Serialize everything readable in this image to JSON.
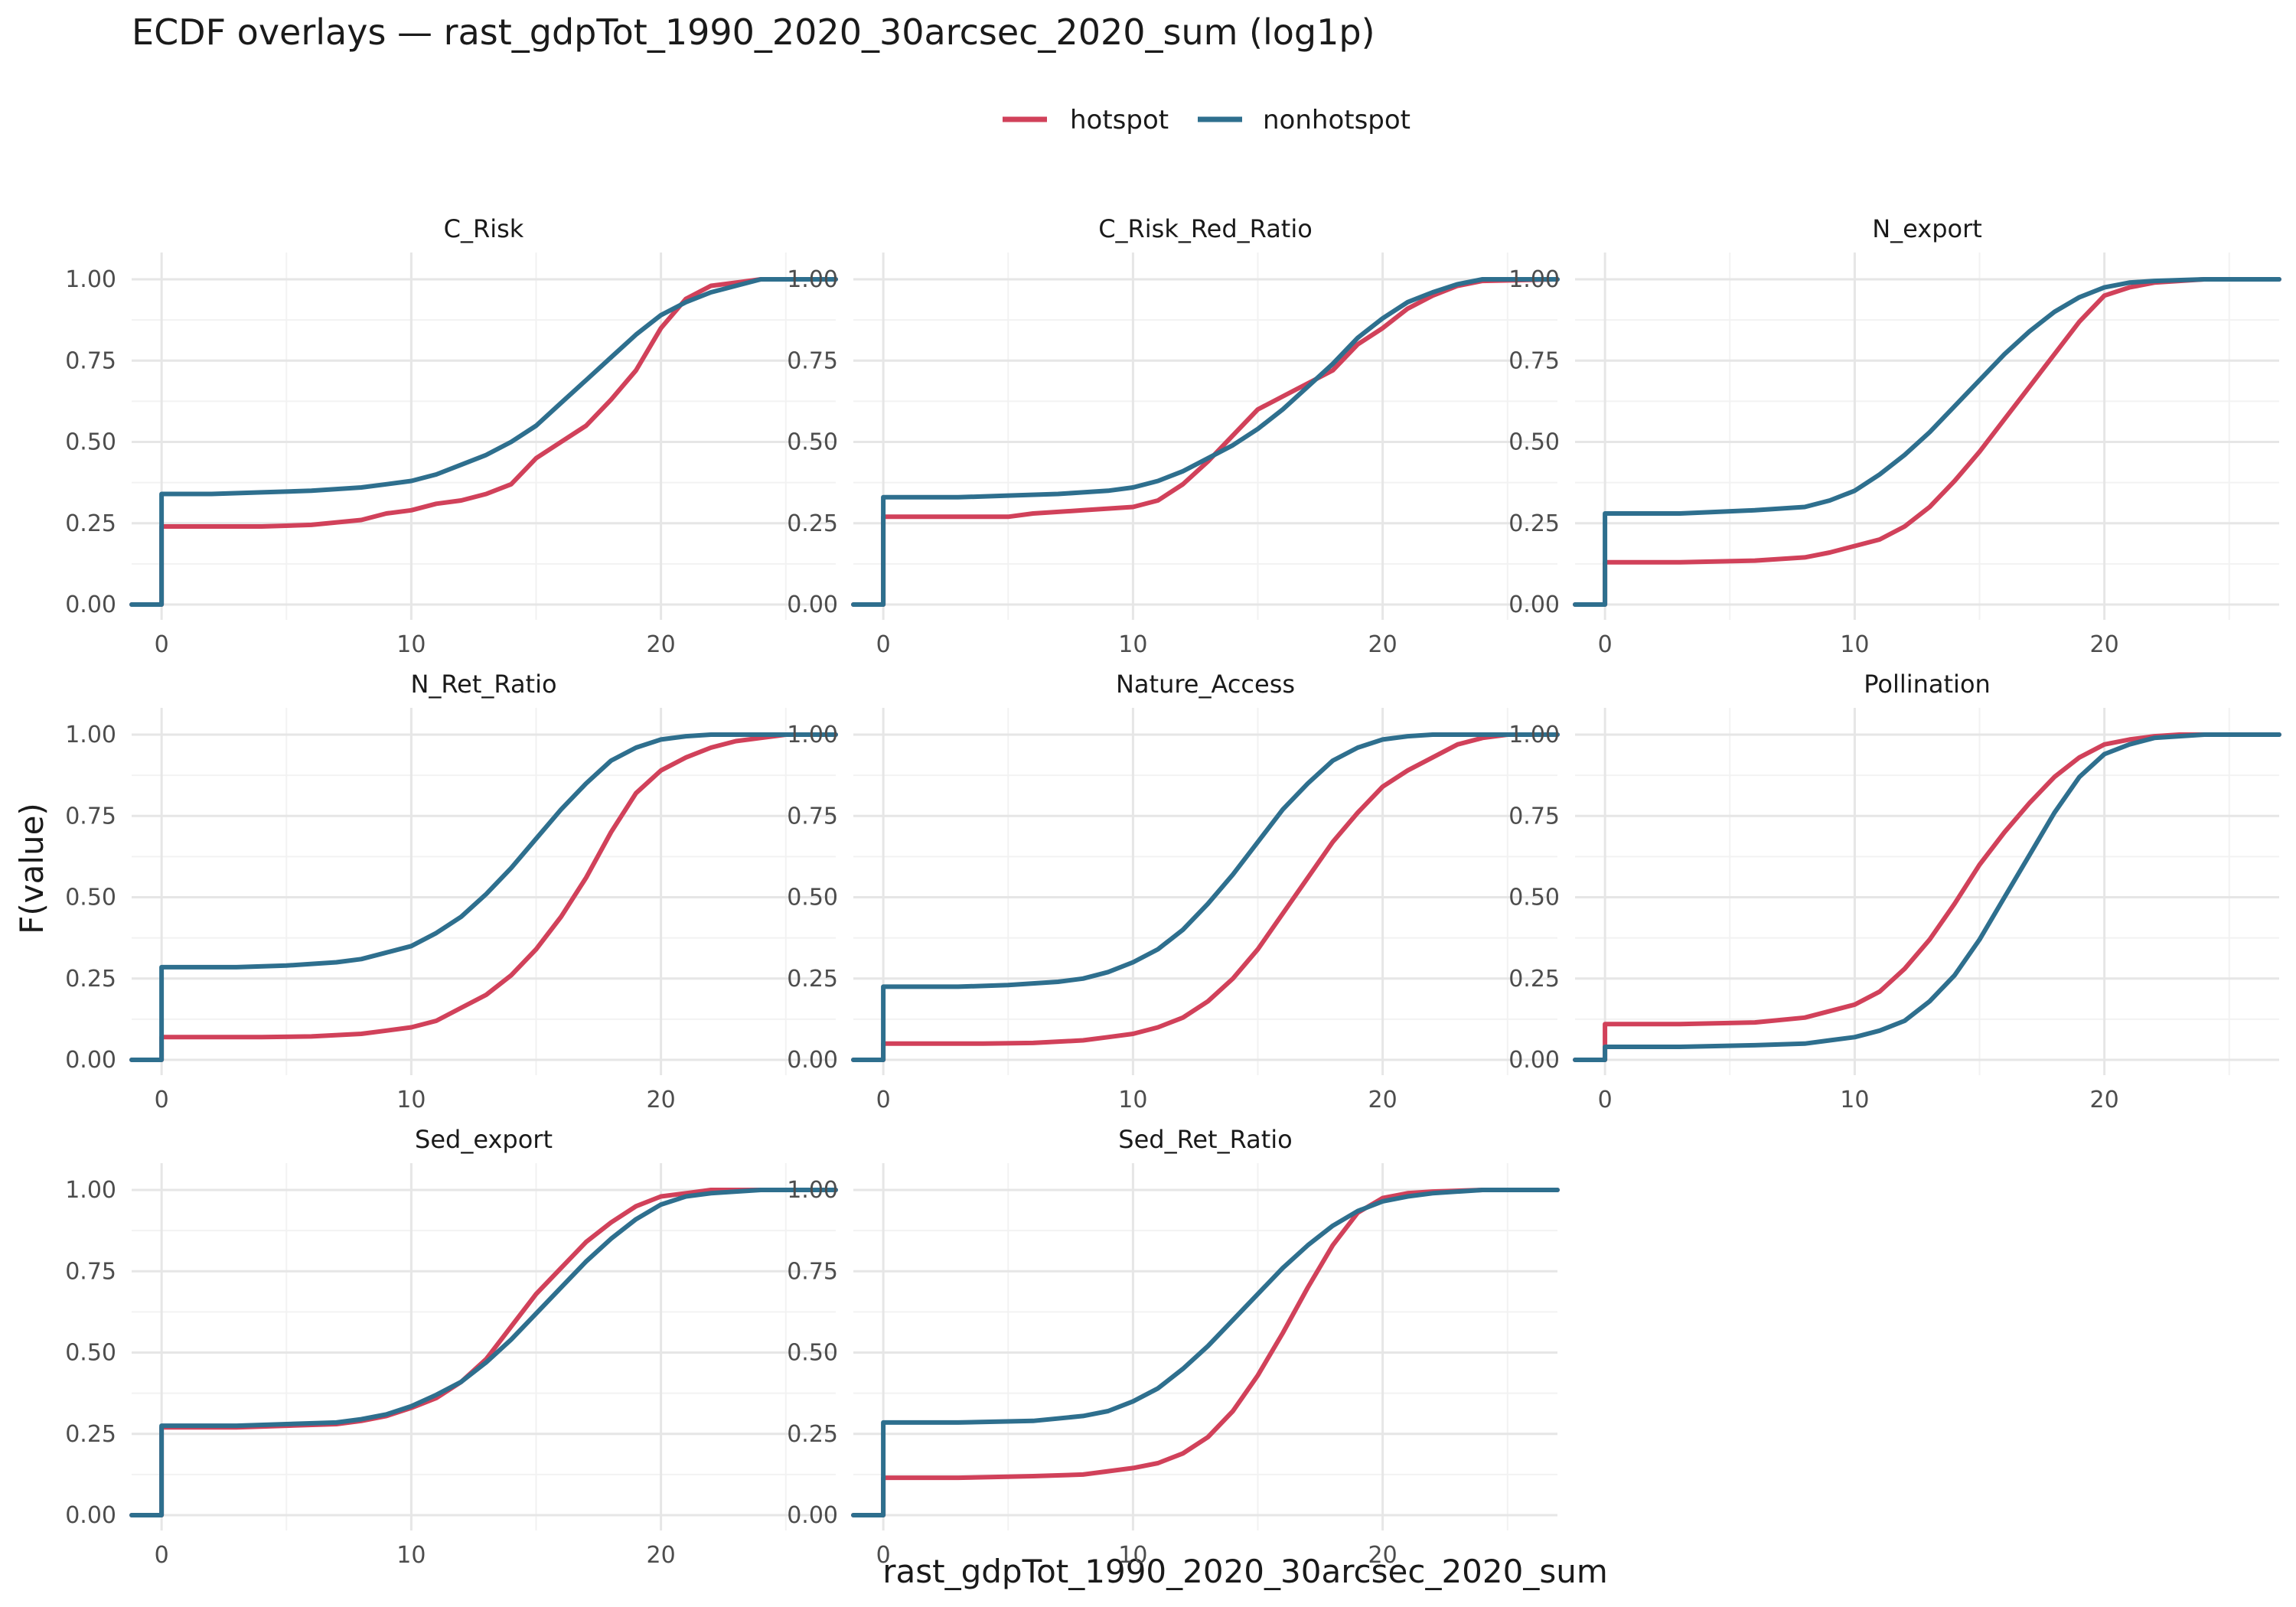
{
  "chart_data": {
    "type": "line",
    "title": "ECDF overlays — rast_gdpTot_1990_2020_30arcsec_2020_sum (log1p)",
    "xlabel": "rast_gdpTot_1990_2020_30arcsec_2020_sum",
    "ylabel": "F(value)",
    "xlim": [
      -1.2,
      27
    ],
    "ylim": [
      0,
      1
    ],
    "x_ticks": [
      0,
      10,
      20
    ],
    "y_ticks": [
      0,
      0.25,
      0.5,
      0.75,
      1.0
    ],
    "y_tick_labels": [
      "0.00",
      "0.25",
      "0.50",
      "0.75",
      "1.00"
    ],
    "grid": true,
    "legend_position": "top",
    "colors": {
      "hotspot": "#d1415a",
      "nonhotspot": "#2e6f8e"
    },
    "legend": [
      "hotspot",
      "nonhotspot"
    ],
    "panels": [
      {
        "name": "C_Risk",
        "series": [
          {
            "name": "hotspot",
            "x": [
              -1.2,
              0,
              0,
              2,
              4,
              6,
              8,
              9,
              10,
              11,
              12,
              13,
              14,
              15,
              16,
              17,
              18,
              19,
              20,
              21,
              22,
              23,
              24,
              27
            ],
            "y": [
              0,
              0,
              0.24,
              0.24,
              0.24,
              0.245,
              0.26,
              0.28,
              0.29,
              0.31,
              0.32,
              0.34,
              0.37,
              0.45,
              0.5,
              0.55,
              0.63,
              0.72,
              0.85,
              0.94,
              0.98,
              0.99,
              1.0,
              1.0
            ]
          },
          {
            "name": "nonhotspot",
            "x": [
              -1.2,
              0,
              0,
              2,
              4,
              6,
              8,
              9,
              10,
              11,
              12,
              13,
              14,
              15,
              16,
              17,
              18,
              19,
              20,
              21,
              22,
              23,
              24,
              27
            ],
            "y": [
              0,
              0,
              0.34,
              0.34,
              0.345,
              0.35,
              0.36,
              0.37,
              0.38,
              0.4,
              0.43,
              0.46,
              0.5,
              0.55,
              0.62,
              0.69,
              0.76,
              0.83,
              0.89,
              0.93,
              0.96,
              0.98,
              1.0,
              1.0
            ]
          }
        ]
      },
      {
        "name": "C_Risk_Red_Ratio",
        "series": [
          {
            "name": "hotspot",
            "x": [
              -1.2,
              0,
              0,
              3,
              5,
              6,
              8,
              10,
              11,
              12,
              13,
              14,
              15,
              16,
              17,
              18,
              19,
              20,
              21,
              22,
              23,
              24,
              27
            ],
            "y": [
              0,
              0,
              0.27,
              0.27,
              0.27,
              0.28,
              0.29,
              0.3,
              0.32,
              0.37,
              0.44,
              0.52,
              0.6,
              0.64,
              0.68,
              0.72,
              0.8,
              0.85,
              0.91,
              0.95,
              0.98,
              0.995,
              1.0
            ]
          },
          {
            "name": "nonhotspot",
            "x": [
              -1.2,
              0,
              0,
              3,
              5,
              7,
              8,
              9,
              10,
              11,
              12,
              13,
              14,
              15,
              16,
              17,
              18,
              19,
              20,
              21,
              22,
              23,
              24,
              27
            ],
            "y": [
              0,
              0,
              0.33,
              0.33,
              0.335,
              0.34,
              0.345,
              0.35,
              0.36,
              0.38,
              0.41,
              0.45,
              0.49,
              0.54,
              0.6,
              0.67,
              0.74,
              0.82,
              0.88,
              0.93,
              0.96,
              0.985,
              1.0,
              1.0
            ]
          }
        ]
      },
      {
        "name": "N_export",
        "series": [
          {
            "name": "hotspot",
            "x": [
              -1.2,
              0,
              0,
              3,
              6,
              8,
              9,
              10,
              11,
              12,
              13,
              14,
              15,
              16,
              17,
              18,
              19,
              20,
              21,
              22,
              24,
              27
            ],
            "y": [
              0,
              0,
              0.13,
              0.13,
              0.135,
              0.145,
              0.16,
              0.18,
              0.2,
              0.24,
              0.3,
              0.38,
              0.47,
              0.57,
              0.67,
              0.77,
              0.87,
              0.95,
              0.975,
              0.99,
              1.0,
              1.0
            ]
          },
          {
            "name": "nonhotspot",
            "x": [
              -1.2,
              0,
              0,
              3,
              6,
              8,
              9,
              10,
              11,
              12,
              13,
              14,
              15,
              16,
              17,
              18,
              19,
              20,
              21,
              22,
              24,
              27
            ],
            "y": [
              0,
              0,
              0.28,
              0.28,
              0.29,
              0.3,
              0.32,
              0.35,
              0.4,
              0.46,
              0.53,
              0.61,
              0.69,
              0.77,
              0.84,
              0.9,
              0.945,
              0.975,
              0.99,
              0.995,
              1.0,
              1.0
            ]
          }
        ]
      },
      {
        "name": "N_Ret_Ratio",
        "series": [
          {
            "name": "hotspot",
            "x": [
              -1.2,
              0,
              0,
              4,
              6,
              8,
              9,
              10,
              11,
              12,
              13,
              14,
              15,
              16,
              17,
              18,
              19,
              20,
              21,
              22,
              23,
              24,
              25,
              27
            ],
            "y": [
              0,
              0,
              0.07,
              0.07,
              0.072,
              0.08,
              0.09,
              0.1,
              0.12,
              0.16,
              0.2,
              0.26,
              0.34,
              0.44,
              0.56,
              0.7,
              0.82,
              0.89,
              0.93,
              0.96,
              0.98,
              0.99,
              1.0,
              1.0
            ]
          },
          {
            "name": "nonhotspot",
            "x": [
              -1.2,
              0,
              0,
              3,
              5,
              7,
              8,
              9,
              10,
              11,
              12,
              13,
              14,
              15,
              16,
              17,
              18,
              19,
              20,
              21,
              22,
              24,
              27
            ],
            "y": [
              0,
              0,
              0.285,
              0.285,
              0.29,
              0.3,
              0.31,
              0.33,
              0.35,
              0.39,
              0.44,
              0.51,
              0.59,
              0.68,
              0.77,
              0.85,
              0.92,
              0.96,
              0.985,
              0.995,
              1.0,
              1.0,
              1.0
            ]
          }
        ]
      },
      {
        "name": "Nature_Access",
        "series": [
          {
            "name": "hotspot",
            "x": [
              -1.2,
              0,
              0,
              4,
              6,
              8,
              9,
              10,
              11,
              12,
              13,
              14,
              15,
              16,
              17,
              18,
              19,
              20,
              21,
              22,
              23,
              24,
              25,
              27
            ],
            "y": [
              0,
              0,
              0.05,
              0.05,
              0.052,
              0.06,
              0.07,
              0.08,
              0.1,
              0.13,
              0.18,
              0.25,
              0.34,
              0.45,
              0.56,
              0.67,
              0.76,
              0.84,
              0.89,
              0.93,
              0.97,
              0.99,
              1.0,
              1.0
            ]
          },
          {
            "name": "nonhotspot",
            "x": [
              -1.2,
              0,
              0,
              3,
              5,
              7,
              8,
              9,
              10,
              11,
              12,
              13,
              14,
              15,
              16,
              17,
              18,
              19,
              20,
              21,
              22,
              24,
              27
            ],
            "y": [
              0,
              0,
              0.225,
              0.225,
              0.23,
              0.24,
              0.25,
              0.27,
              0.3,
              0.34,
              0.4,
              0.48,
              0.57,
              0.67,
              0.77,
              0.85,
              0.92,
              0.96,
              0.985,
              0.995,
              1.0,
              1.0,
              1.0
            ]
          }
        ]
      },
      {
        "name": "Pollination",
        "series": [
          {
            "name": "hotspot",
            "x": [
              -1.2,
              0,
              0,
              3,
              6,
              8,
              9,
              10,
              11,
              12,
              13,
              14,
              15,
              16,
              17,
              18,
              19,
              20,
              21,
              22,
              23,
              24,
              27
            ],
            "y": [
              0,
              0,
              0.11,
              0.11,
              0.115,
              0.13,
              0.15,
              0.17,
              0.21,
              0.28,
              0.37,
              0.48,
              0.6,
              0.7,
              0.79,
              0.87,
              0.93,
              0.97,
              0.985,
              0.995,
              1.0,
              1.0,
              1.0
            ]
          },
          {
            "name": "nonhotspot",
            "x": [
              -1.2,
              0,
              0,
              3,
              6,
              8,
              9,
              10,
              11,
              12,
              13,
              14,
              15,
              16,
              17,
              18,
              19,
              20,
              21,
              22,
              23,
              24,
              27
            ],
            "y": [
              0,
              0,
              0.04,
              0.04,
              0.045,
              0.05,
              0.06,
              0.07,
              0.09,
              0.12,
              0.18,
              0.26,
              0.37,
              0.5,
              0.63,
              0.76,
              0.87,
              0.94,
              0.97,
              0.99,
              0.995,
              1.0,
              1.0
            ]
          }
        ]
      },
      {
        "name": "Sed_export",
        "series": [
          {
            "name": "hotspot",
            "x": [
              -1.2,
              0,
              0,
              3,
              5,
              7,
              8,
              9,
              10,
              11,
              12,
              13,
              14,
              15,
              16,
              17,
              18,
              19,
              20,
              21,
              22,
              23,
              27
            ],
            "y": [
              0,
              0,
              0.27,
              0.27,
              0.275,
              0.28,
              0.29,
              0.305,
              0.33,
              0.36,
              0.41,
              0.48,
              0.58,
              0.68,
              0.76,
              0.84,
              0.9,
              0.95,
              0.98,
              0.99,
              1.0,
              1.0,
              1.0
            ]
          },
          {
            "name": "nonhotspot",
            "x": [
              -1.2,
              0,
              0,
              3,
              5,
              7,
              8,
              9,
              10,
              11,
              12,
              13,
              14,
              15,
              16,
              17,
              18,
              19,
              20,
              21,
              22,
              24,
              27
            ],
            "y": [
              0,
              0,
              0.275,
              0.275,
              0.28,
              0.285,
              0.295,
              0.31,
              0.335,
              0.37,
              0.41,
              0.47,
              0.54,
              0.62,
              0.7,
              0.78,
              0.85,
              0.91,
              0.955,
              0.98,
              0.99,
              1.0,
              1.0
            ]
          }
        ]
      },
      {
        "name": "Sed_Ret_Ratio",
        "series": [
          {
            "name": "hotspot",
            "x": [
              -1.2,
              0,
              0,
              3,
              6,
              8,
              9,
              10,
              11,
              12,
              13,
              14,
              15,
              16,
              17,
              18,
              19,
              20,
              21,
              22,
              24,
              27
            ],
            "y": [
              0,
              0,
              0.115,
              0.115,
              0.12,
              0.125,
              0.135,
              0.145,
              0.16,
              0.19,
              0.24,
              0.32,
              0.43,
              0.56,
              0.7,
              0.83,
              0.93,
              0.975,
              0.99,
              0.995,
              1.0,
              1.0
            ]
          },
          {
            "name": "nonhotspot",
            "x": [
              -1.2,
              0,
              0,
              3,
              6,
              8,
              9,
              10,
              11,
              12,
              13,
              14,
              15,
              16,
              17,
              18,
              19,
              20,
              21,
              22,
              24,
              27
            ],
            "y": [
              0,
              0,
              0.285,
              0.285,
              0.29,
              0.305,
              0.32,
              0.35,
              0.39,
              0.45,
              0.52,
              0.6,
              0.68,
              0.76,
              0.83,
              0.89,
              0.935,
              0.965,
              0.98,
              0.99,
              1.0,
              1.0
            ]
          }
        ]
      }
    ]
  }
}
